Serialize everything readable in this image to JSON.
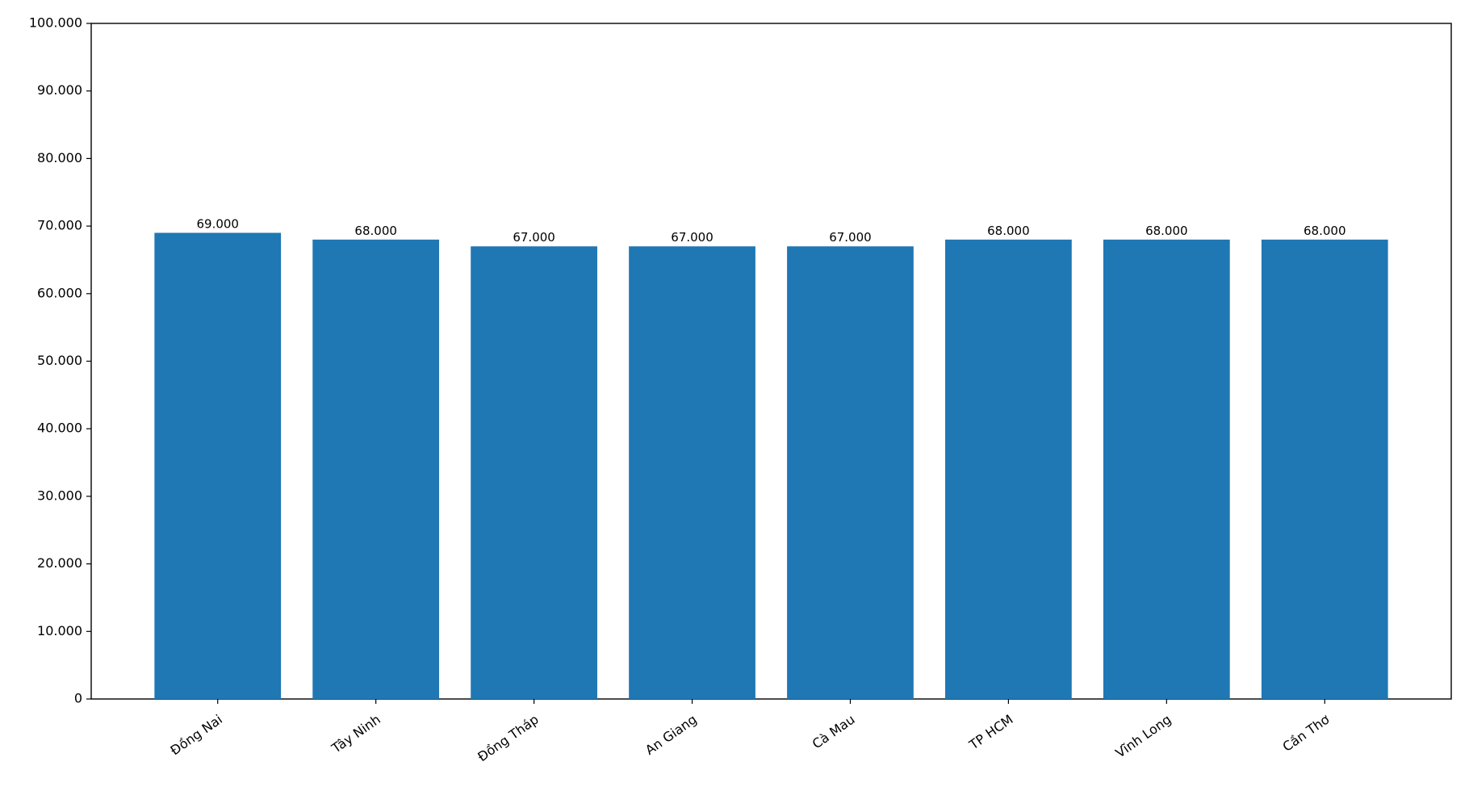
{
  "chart_data": {
    "type": "bar",
    "categories": [
      "Đồng Nai",
      "Tây Ninh",
      "Đồng Tháp",
      "An Giang",
      "Cà Mau",
      "TP HCM",
      "Vĩnh Long",
      "Cần Thơ"
    ],
    "values": [
      69000,
      68000,
      67000,
      67000,
      67000,
      68000,
      68000,
      68000
    ],
    "value_labels": [
      "69.000",
      "68.000",
      "67.000",
      "67.000",
      "67.000",
      "68.000",
      "68.000",
      "68.000"
    ],
    "color": "#1f77b4",
    "ylim": [
      0,
      100000
    ],
    "yticks": [
      0,
      {
        "value": 10000,
        "label": "10.000"
      },
      {
        "value": 20000,
        "label": "20.000"
      },
      {
        "value": 30000,
        "label": "30.000"
      },
      {
        "value": 40000,
        "label": "40.000"
      },
      {
        "value": 50000,
        "label": "50.000"
      },
      {
        "value": 60000,
        "label": "60.000"
      },
      {
        "value": 70000,
        "label": "70.000"
      },
      {
        "value": 80000,
        "label": "80.000"
      },
      {
        "value": 90000,
        "label": "90.000"
      },
      {
        "value": 100000,
        "label": "100.000"
      }
    ],
    "grid": false
  }
}
